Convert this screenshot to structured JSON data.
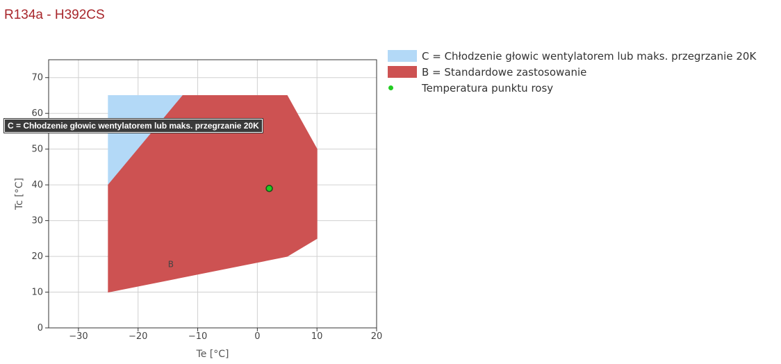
{
  "title": "R134a - H392CS",
  "chart_data": {
    "type": "area",
    "xlabel": "Te [°C]",
    "ylabel": "Tc [°C]",
    "xlim": [
      -35,
      20
    ],
    "ylim": [
      0,
      75
    ],
    "xticks": [
      -30,
      -20,
      -10,
      0,
      10,
      20
    ],
    "yticks": [
      0,
      10,
      20,
      30,
      40,
      50,
      60,
      70
    ],
    "xtick_labels": [
      "−30",
      "−20",
      "−10",
      "0",
      "10",
      "20"
    ],
    "ytick_labels": [
      "0",
      "10",
      "20",
      "30",
      "40",
      "50",
      "60",
      "70"
    ],
    "grid": true,
    "legend_position": "right",
    "series": [
      {
        "name": "C = Chłodzenie głowic wentylatorem lub maks. przegrzanie 20K",
        "color": "#b3d9f7",
        "polygon": [
          [
            -25,
            40
          ],
          [
            -25,
            65
          ],
          [
            -12.5,
            65
          ],
          [
            -20,
            50
          ]
        ]
      },
      {
        "name": "B = Standardowe zastosowanie",
        "label": "B",
        "label_at": [
          -14.5,
          17
        ],
        "color": "#cd5252",
        "polygon": [
          [
            -25,
            10
          ],
          [
            5,
            20
          ],
          [
            10,
            25
          ],
          [
            10,
            50
          ],
          [
            5,
            65
          ],
          [
            -12.5,
            65
          ],
          [
            -25,
            40
          ]
        ]
      },
      {
        "name": "Temperatura punktu rosy",
        "color": "#22cc22",
        "points": [
          [
            2,
            39
          ]
        ]
      }
    ],
    "tooltip": "C = Chłodzenie głowic wentylatorem lub maks. przegrzanie 20K"
  }
}
